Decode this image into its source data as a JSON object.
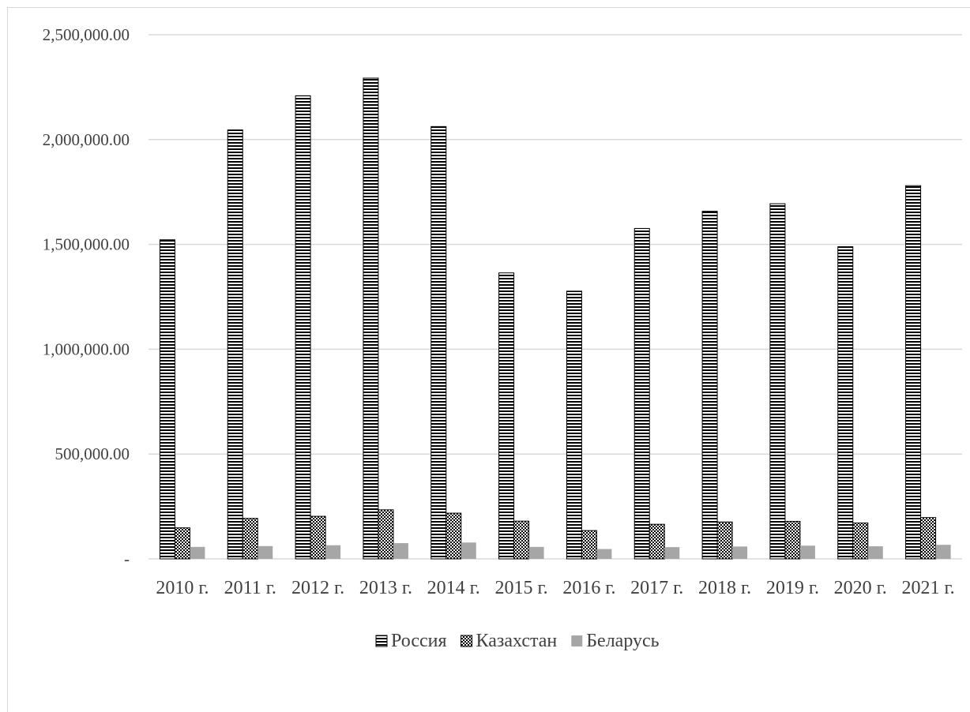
{
  "chart_data": {
    "type": "bar",
    "categories": [
      "2010 г.",
      "2011 г.",
      "2012 г.",
      "2013 г.",
      "2014 г.",
      "2015 г.",
      "2016 г.",
      "2017 г.",
      "2018 г.",
      "2019 г.",
      "2020 г.",
      "2021 г."
    ],
    "series": [
      {
        "name": "Россия",
        "pattern": "horizontal-stripes",
        "color": "#000000",
        "values": [
          1522000,
          2046000,
          2209000,
          2293000,
          2062000,
          1364000,
          1277000,
          1576000,
          1658000,
          1694000,
          1489000,
          1780000
        ]
      },
      {
        "name": "Казахстан",
        "pattern": "checker",
        "color": "#000000",
        "values": [
          148000,
          193000,
          203000,
          234000,
          218000,
          180000,
          135000,
          165000,
          176000,
          179000,
          171000,
          197000
        ]
      },
      {
        "name": "Беларусь",
        "pattern": "solid",
        "color": "#a6a6a6",
        "values": [
          57000,
          61000,
          65000,
          75000,
          78000,
          57000,
          47000,
          56000,
          59000,
          63000,
          60000,
          67000
        ]
      }
    ],
    "y_ticks": [
      "-",
      "500,000.00",
      "1,000,000.00",
      "1,500,000.00",
      "2,000,000.00",
      "2,500,000.00"
    ],
    "ylim": [
      0,
      2500000
    ],
    "grid": true,
    "legend_position": "bottom",
    "colors": {
      "grid": "#d9d9d9",
      "axis": "#d9d9d9",
      "text": "#404040"
    }
  }
}
